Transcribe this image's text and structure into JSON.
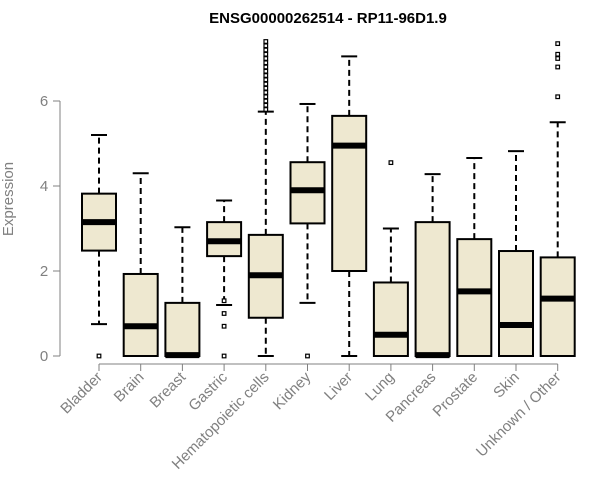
{
  "chart_data": {
    "type": "boxplot",
    "title": "ENSG00000262514 - RP11-96D1.9",
    "xlabel": "",
    "ylabel": "Expression",
    "ylim": [
      0,
      7.5
    ],
    "yticks": [
      0,
      2,
      4,
      6
    ],
    "box_color": "#EEE8D0",
    "axis_color": "#808080",
    "categories": [
      "Bladder",
      "Brain",
      "Breast",
      "Gastric",
      "Hematopoietic cells",
      "Kidney",
      "Liver",
      "Lung",
      "Pancreas",
      "Prostate",
      "Skin",
      "Unknown / Other"
    ],
    "boxes": [
      {
        "whisker_low": 0.75,
        "q1": 2.48,
        "median": 3.15,
        "q3": 3.82,
        "whisker_high": 5.2,
        "outliers": [
          0.0
        ]
      },
      {
        "whisker_low": 0.0,
        "q1": 0.0,
        "median": 0.7,
        "q3": 1.93,
        "whisker_high": 4.3,
        "outliers": []
      },
      {
        "whisker_low": 0.0,
        "q1": 0.0,
        "median": 0.02,
        "q3": 1.25,
        "whisker_high": 3.03,
        "outliers": []
      },
      {
        "whisker_low": 1.2,
        "q1": 2.35,
        "median": 2.7,
        "q3": 3.15,
        "whisker_high": 3.66,
        "outliers": [
          0.0,
          0.7,
          1.0,
          1.3
        ]
      },
      {
        "whisker_low": 0.0,
        "q1": 0.9,
        "median": 1.9,
        "q3": 2.85,
        "whisker_high": 5.75,
        "outliers": [
          5.8,
          5.9,
          6.0,
          6.1,
          6.2,
          6.3,
          6.4,
          6.5,
          6.6,
          6.7,
          6.8,
          6.9,
          7.0,
          7.1,
          7.2,
          7.3,
          7.4
        ]
      },
      {
        "whisker_low": 1.25,
        "q1": 3.12,
        "median": 3.9,
        "q3": 4.56,
        "whisker_high": 5.93,
        "outliers": [
          0.0
        ]
      },
      {
        "whisker_low": 0.0,
        "q1": 2.0,
        "median": 4.95,
        "q3": 5.65,
        "whisker_high": 7.05,
        "outliers": []
      },
      {
        "whisker_low": 0.0,
        "q1": 0.0,
        "median": 0.5,
        "q3": 1.73,
        "whisker_high": 3.0,
        "outliers": [
          4.55
        ]
      },
      {
        "whisker_low": 0.0,
        "q1": 0.0,
        "median": 0.02,
        "q3": 3.15,
        "whisker_high": 4.28,
        "outliers": []
      },
      {
        "whisker_low": 0.0,
        "q1": 0.0,
        "median": 1.52,
        "q3": 2.75,
        "whisker_high": 4.66,
        "outliers": []
      },
      {
        "whisker_low": 0.0,
        "q1": 0.0,
        "median": 0.73,
        "q3": 2.47,
        "whisker_high": 4.82,
        "outliers": []
      },
      {
        "whisker_low": 0.0,
        "q1": 0.0,
        "median": 1.35,
        "q3": 2.32,
        "whisker_high": 5.5,
        "outliers": [
          6.1,
          6.8,
          7.0,
          7.1,
          7.35
        ]
      }
    ]
  }
}
